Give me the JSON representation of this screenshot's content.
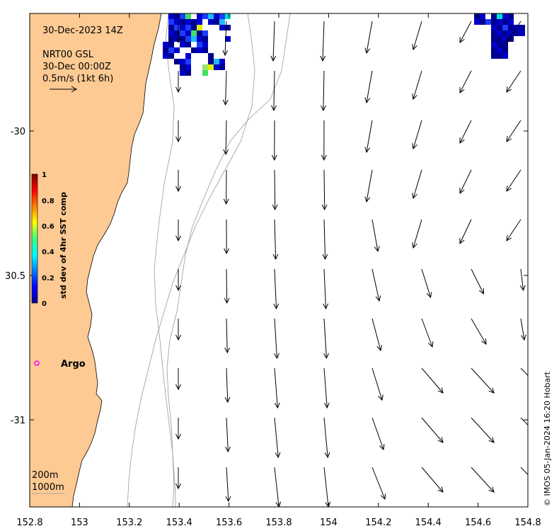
{
  "map": {
    "datetime_label": "30-Dec-2023 14Z",
    "current_source": "NRT00 GSL",
    "current_time": "30-Dec 00:00Z",
    "scale_label": "0.5m/s (1kt 6h)",
    "argo_label": "Argo",
    "isobath_labels": [
      "200m",
      "1000m"
    ],
    "credit": "© IMOS 05-Jan-2024 16:20 Hobart",
    "land_color": "#fdca94",
    "argo_color": "#ff00ff",
    "x_ticks": [
      "152.8",
      "153",
      "153.2",
      "153.4",
      "153.6",
      "153.8",
      "154",
      "154.2",
      "154.4",
      "154.6",
      "154.8"
    ],
    "y_ticks": [
      "-30",
      "30.5",
      "-31"
    ],
    "lon_range": [
      152.8,
      154.8
    ],
    "lat_range": [
      -31.3,
      -29.6
    ]
  },
  "colorbar": {
    "label": "std dev of 4hr SST comp",
    "ticks": [
      "1",
      "0.8",
      "0.6",
      "0.4",
      "0.2",
      "0"
    ],
    "range": [
      0,
      1
    ],
    "colormap": "jet"
  }
}
